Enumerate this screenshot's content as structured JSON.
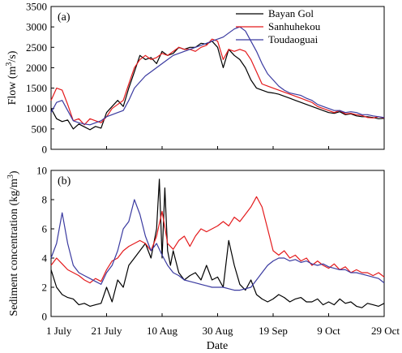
{
  "chart_data": [
    {
      "type": "line",
      "panel": "(a)",
      "ylabel_main": "Flow (m",
      "ylabel_sup": "3",
      "ylabel_tail": "/s)",
      "ylim": [
        0,
        3500
      ],
      "yticks": [
        0,
        500,
        1000,
        1500,
        2000,
        2500,
        3000,
        3500
      ],
      "xlim": [
        0,
        120
      ],
      "legend": "top-right",
      "series": [
        {
          "name": "Bayan Gol",
          "color": "#000000",
          "x": [
            0,
            2,
            4,
            6,
            8,
            10,
            12,
            14,
            16,
            18,
            20,
            22,
            24,
            26,
            28,
            30,
            32,
            34,
            36,
            38,
            40,
            42,
            44,
            46,
            48,
            50,
            52,
            54,
            56,
            58,
            60,
            62,
            64,
            66,
            68,
            70,
            72,
            74,
            76,
            78,
            80,
            82,
            84,
            86,
            88,
            90,
            92,
            94,
            96,
            98,
            100,
            102,
            104,
            106,
            108,
            110,
            112,
            114,
            116,
            118,
            120
          ],
          "y": [
            1000,
            750,
            680,
            720,
            500,
            620,
            550,
            480,
            560,
            520,
            900,
            1050,
            1200,
            1050,
            1500,
            1900,
            2300,
            2200,
            2250,
            2100,
            2400,
            2300,
            2350,
            2500,
            2450,
            2500,
            2500,
            2600,
            2580,
            2650,
            2500,
            2000,
            2450,
            2300,
            2200,
            2000,
            1700,
            1500,
            1450,
            1400,
            1380,
            1350,
            1300,
            1250,
            1200,
            1150,
            1100,
            1050,
            1000,
            950,
            900,
            880,
            920,
            850,
            870,
            820,
            800,
            800,
            780,
            750,
            760
          ]
        },
        {
          "name": "Sanhuhekou",
          "color": "#e41a1c",
          "x": [
            0,
            2,
            4,
            6,
            8,
            10,
            12,
            14,
            16,
            18,
            20,
            22,
            24,
            26,
            28,
            30,
            32,
            34,
            36,
            38,
            40,
            42,
            44,
            46,
            48,
            50,
            52,
            54,
            56,
            58,
            60,
            62,
            64,
            66,
            68,
            70,
            72,
            74,
            76,
            78,
            80,
            82,
            84,
            86,
            88,
            90,
            92,
            94,
            96,
            98,
            100,
            102,
            104,
            106,
            108,
            110,
            112,
            114,
            116,
            118,
            120
          ],
          "y": [
            1200,
            1500,
            1450,
            1100,
            700,
            750,
            600,
            750,
            700,
            650,
            800,
            1000,
            1100,
            1200,
            1600,
            2000,
            2200,
            2300,
            2200,
            2250,
            2350,
            2300,
            2400,
            2500,
            2450,
            2450,
            2400,
            2500,
            2550,
            2700,
            2650,
            2200,
            2450,
            2400,
            2450,
            2400,
            2200,
            1900,
            1600,
            1550,
            1500,
            1450,
            1400,
            1350,
            1300,
            1250,
            1200,
            1150,
            1050,
            1000,
            950,
            900,
            950,
            870,
            880,
            850,
            830,
            780,
            770,
            800,
            770
          ]
        },
        {
          "name": "Toudaoguai",
          "color": "#3a3aa0",
          "x": [
            0,
            2,
            4,
            6,
            8,
            10,
            12,
            14,
            16,
            18,
            20,
            22,
            24,
            26,
            28,
            30,
            32,
            34,
            36,
            38,
            40,
            42,
            44,
            46,
            48,
            50,
            52,
            54,
            56,
            58,
            60,
            62,
            64,
            66,
            68,
            70,
            72,
            74,
            76,
            78,
            80,
            82,
            84,
            86,
            88,
            90,
            92,
            94,
            96,
            98,
            100,
            102,
            104,
            106,
            108,
            110,
            112,
            114,
            116,
            118,
            120
          ],
          "y": [
            900,
            1150,
            1200,
            950,
            700,
            650,
            620,
            600,
            650,
            700,
            800,
            850,
            900,
            950,
            1200,
            1500,
            1650,
            1800,
            1900,
            2000,
            2100,
            2200,
            2300,
            2350,
            2400,
            2450,
            2500,
            2550,
            2600,
            2650,
            2700,
            2750,
            2850,
            2950,
            3000,
            2900,
            2650,
            2400,
            2100,
            1850,
            1700,
            1550,
            1450,
            1380,
            1350,
            1320,
            1250,
            1200,
            1100,
            1050,
            1000,
            950,
            950,
            900,
            920,
            900,
            850,
            850,
            820,
            800,
            780
          ]
        }
      ]
    },
    {
      "type": "line",
      "panel": "(b)",
      "ylabel_main": "Sediment concentration (kg/m",
      "ylabel_sup": "3",
      "ylabel_tail": ")",
      "ylim": [
        0,
        10
      ],
      "yticks": [
        0,
        2,
        4,
        6,
        8,
        10
      ],
      "xlim": [
        0,
        120
      ],
      "series": [
        {
          "name": "Bayan Gol",
          "color": "#000000",
          "x": [
            0,
            2,
            4,
            6,
            8,
            10,
            12,
            14,
            16,
            18,
            20,
            22,
            24,
            26,
            28,
            30,
            32,
            34,
            36,
            38,
            39,
            40,
            41,
            42,
            43,
            44,
            46,
            48,
            50,
            52,
            54,
            56,
            58,
            60,
            62,
            64,
            66,
            68,
            70,
            72,
            74,
            76,
            78,
            80,
            82,
            84,
            86,
            88,
            90,
            92,
            94,
            96,
            98,
            100,
            102,
            104,
            106,
            108,
            110,
            112,
            114,
            116,
            118,
            120
          ],
          "y": [
            3.2,
            2.0,
            1.5,
            1.3,
            1.2,
            0.8,
            0.9,
            0.7,
            0.8,
            0.9,
            2.0,
            1.0,
            2.5,
            2.0,
            3.5,
            4.0,
            4.5,
            5.0,
            4.0,
            6.0,
            9.4,
            4.0,
            8.8,
            4.5,
            3.5,
            4.5,
            3.0,
            2.5,
            2.8,
            3.0,
            2.5,
            3.5,
            2.5,
            2.7,
            2.0,
            5.2,
            3.5,
            2.2,
            1.8,
            2.5,
            1.5,
            1.2,
            1.0,
            1.2,
            1.5,
            1.3,
            1.0,
            1.2,
            1.3,
            1.0,
            1.0,
            1.2,
            0.8,
            1.0,
            0.8,
            1.2,
            0.9,
            1.0,
            0.7,
            0.6,
            0.9,
            0.8,
            0.7,
            0.9
          ]
        },
        {
          "name": "Sanhuhekou",
          "color": "#e41a1c",
          "x": [
            0,
            2,
            4,
            6,
            8,
            10,
            12,
            14,
            16,
            18,
            20,
            22,
            24,
            26,
            28,
            30,
            32,
            34,
            36,
            38,
            40,
            42,
            44,
            46,
            48,
            50,
            52,
            54,
            56,
            58,
            60,
            62,
            64,
            66,
            68,
            70,
            72,
            74,
            76,
            78,
            80,
            82,
            84,
            86,
            88,
            90,
            92,
            94,
            96,
            98,
            100,
            102,
            104,
            106,
            108,
            110,
            112,
            114,
            116,
            118,
            120
          ],
          "y": [
            3.5,
            4.0,
            3.6,
            3.2,
            3.0,
            2.8,
            2.5,
            2.3,
            2.6,
            2.4,
            3.2,
            3.8,
            4.0,
            4.5,
            4.8,
            5.0,
            5.2,
            5.0,
            4.5,
            5.5,
            7.2,
            5.0,
            4.6,
            5.2,
            5.5,
            4.8,
            5.5,
            6.0,
            5.8,
            6.0,
            6.2,
            6.5,
            6.2,
            6.8,
            6.5,
            7.0,
            7.5,
            8.2,
            7.5,
            6.0,
            4.5,
            4.2,
            4.5,
            4.0,
            4.2,
            3.8,
            4.0,
            3.5,
            3.8,
            3.5,
            3.3,
            3.6,
            3.2,
            3.4,
            3.0,
            3.2,
            3.0,
            3.0,
            2.8,
            3.0,
            2.7
          ]
        },
        {
          "name": "Toudaoguai",
          "color": "#3a3aa0",
          "x": [
            0,
            2,
            4,
            6,
            8,
            10,
            12,
            14,
            16,
            18,
            20,
            22,
            24,
            26,
            28,
            30,
            32,
            34,
            36,
            38,
            40,
            42,
            44,
            46,
            48,
            50,
            52,
            54,
            56,
            58,
            60,
            62,
            64,
            66,
            68,
            70,
            72,
            74,
            76,
            78,
            80,
            82,
            84,
            86,
            88,
            90,
            92,
            94,
            96,
            98,
            100,
            102,
            104,
            106,
            108,
            110,
            112,
            114,
            116,
            118,
            120
          ],
          "y": [
            4.0,
            5.0,
            7.1,
            5.0,
            3.5,
            3.0,
            2.8,
            2.6,
            2.4,
            2.2,
            3.0,
            3.5,
            4.5,
            6.0,
            6.5,
            8.0,
            7.0,
            5.5,
            4.5,
            5.0,
            4.2,
            3.5,
            3.0,
            2.8,
            2.5,
            2.4,
            2.3,
            2.2,
            2.1,
            2.0,
            2.0,
            2.0,
            1.9,
            1.8,
            1.8,
            1.9,
            2.0,
            2.5,
            3.0,
            3.5,
            3.8,
            4.0,
            4.0,
            3.8,
            3.9,
            3.7,
            3.8,
            3.6,
            3.5,
            3.6,
            3.4,
            3.3,
            3.2,
            3.2,
            3.0,
            3.0,
            2.9,
            2.8,
            2.7,
            2.6,
            2.3
          ]
        }
      ]
    }
  ],
  "x_axis": {
    "title": "Date",
    "ticks": [
      {
        "pos": 0,
        "label": "1 July"
      },
      {
        "pos": 20,
        "label": "21 July"
      },
      {
        "pos": 40,
        "label": "10 Aug"
      },
      {
        "pos": 60,
        "label": "30 Aug"
      },
      {
        "pos": 80,
        "label": "19 Sep"
      },
      {
        "pos": 100,
        "label": "9 Oct"
      },
      {
        "pos": 120,
        "label": "29 Oct"
      }
    ]
  }
}
